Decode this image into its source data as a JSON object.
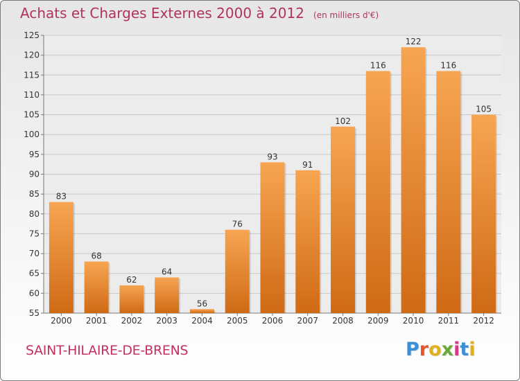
{
  "header": {
    "title": "Achats et Charges Externes 2000 à 2012",
    "subtitle": "(en milliers d'€)"
  },
  "footer": {
    "commune": "SAINT-HILAIRE-DE-BRENS",
    "logo": "Proxiti",
    "logo_colors": [
      "#3a8fd6",
      "#e7552c",
      "#e0b020",
      "#6aa93a",
      "#d83a8a",
      "#3a8fd6",
      "#e0b020"
    ]
  },
  "colors": {
    "bar_top": "#f7a552",
    "bar_bottom": "#cf6a15",
    "grid": "#c8c8c8",
    "plot_bg": "#ececec"
  },
  "chart_data": {
    "type": "bar",
    "title": "Achats et Charges Externes 2000 à 2012",
    "subtitle": "(en milliers d'€)",
    "categories": [
      "2000",
      "2001",
      "2002",
      "2003",
      "2004",
      "2005",
      "2006",
      "2007",
      "2008",
      "2009",
      "2010",
      "2011",
      "2012"
    ],
    "values": [
      83,
      68,
      62,
      64,
      56,
      76,
      93,
      91,
      102,
      116,
      122,
      116,
      105
    ],
    "ylim": [
      55,
      125
    ],
    "yticks": [
      55,
      60,
      65,
      70,
      75,
      80,
      85,
      90,
      95,
      100,
      105,
      110,
      115,
      120,
      125
    ],
    "grid": true,
    "data_labels": true
  }
}
